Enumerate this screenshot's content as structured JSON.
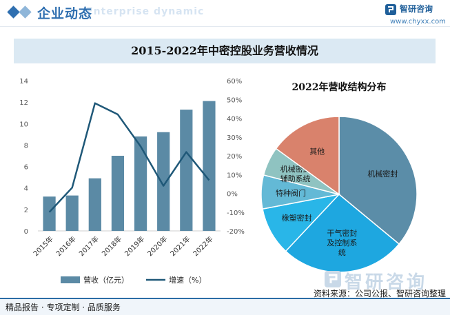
{
  "header": {
    "title": "企业动态",
    "subtitle": "Enterprise dynamic",
    "brand_name": "智研咨询",
    "brand_url": "www.chyxx.com"
  },
  "chart_title": "2015-2022年中密控股业务营收情况",
  "colors": {
    "bar": "#5b8aa5",
    "line": "#1f5878",
    "header_blue": "#2f6fb0",
    "title_bg": "#dbe9f3"
  },
  "chart_data": [
    {
      "type": "bar",
      "categories": [
        "2015年",
        "2016年",
        "2017年",
        "2018年",
        "2019年",
        "2020年",
        "2021年",
        "2022年"
      ],
      "series": [
        {
          "name": "营收（亿元）",
          "type": "bar",
          "axis": "left",
          "values": [
            3.2,
            3.3,
            4.9,
            7.0,
            8.8,
            9.2,
            11.3,
            12.1
          ]
        },
        {
          "name": "增速（%）",
          "type": "line",
          "axis": "right",
          "values": [
            -10,
            3,
            48,
            42,
            25,
            4,
            22,
            7
          ]
        }
      ],
      "ylim_left": [
        0,
        14
      ],
      "yticks_left": [
        "0",
        "2",
        "4",
        "6",
        "8",
        "10",
        "12",
        "14"
      ],
      "ylim_right": [
        -20,
        60
      ],
      "yticks_right": [
        "-20%",
        "-10%",
        "0%",
        "10%",
        "20%",
        "30%",
        "40%",
        "50%",
        "60%"
      ],
      "legend_position": "bottom",
      "grid": false
    },
    {
      "type": "pie",
      "title": "2022年营收结构分布",
      "slices": [
        {
          "label": "机械密封",
          "value": 36,
          "color": "#5b8da8"
        },
        {
          "label": "干气密封\n及控制系\n统",
          "value": 26,
          "color": "#1ea7e0"
        },
        {
          "label": "橡塑密封",
          "value": 10,
          "color": "#29b6e8"
        },
        {
          "label": "特种阀门",
          "value": 7,
          "color": "#63b9d6"
        },
        {
          "label": "机械密封\n辅助系统",
          "value": 6,
          "color": "#8fc3c1"
        },
        {
          "label": "其他",
          "value": 15,
          "color": "#d9826c"
        }
      ]
    }
  ],
  "footer": {
    "left": "精品报告 · 专项定制 · 品质服务",
    "source": "资料来源：公司公报、智研咨询整理"
  },
  "watermark": "智研咨询"
}
